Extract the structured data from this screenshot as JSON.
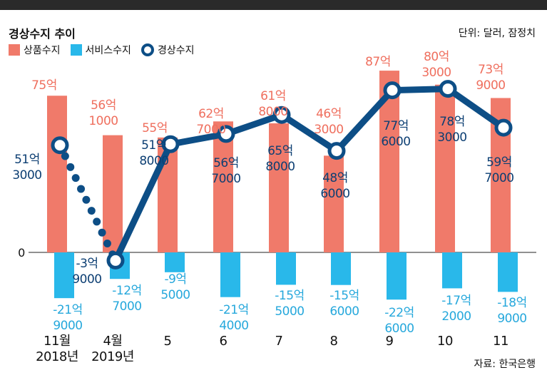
{
  "header": {
    "title": "경상수지 추이",
    "unit": "단위: 달러, 잠정치",
    "source": "자료: 한국은행"
  },
  "legend": {
    "goods": "상품수지",
    "services": "서비스수지",
    "current": "경상수지"
  },
  "colors": {
    "goods": "#f07a6a",
    "services": "#29b8ea",
    "current": "#0d4e86",
    "goods_label": "#ef6f5e",
    "services_label": "#26a8dc",
    "current_label": "#0d3f73"
  },
  "chart_data": {
    "type": "bar",
    "categories": [
      [
        "11월",
        "2018년"
      ],
      [
        "4월",
        "2019년"
      ],
      [
        "5"
      ],
      [
        "6"
      ],
      [
        "7"
      ],
      [
        "8"
      ],
      [
        "9"
      ],
      [
        "10"
      ],
      [
        "11"
      ]
    ],
    "zero_label": "0",
    "unit_scale": "억 달러",
    "series": [
      {
        "name": "상품수지",
        "values": [
          75,
          56.1,
          55,
          62.7,
          61.8,
          46.3,
          87,
          80.3,
          73.9
        ],
        "labels": [
          [
            "75억"
          ],
          [
            "56억",
            "1000"
          ],
          [
            "55억"
          ],
          [
            "62억",
            "7000"
          ],
          [
            "61억",
            "8000"
          ],
          [
            "46억",
            "3000"
          ],
          [
            "87억"
          ],
          [
            "80억",
            "3000"
          ],
          [
            "73억",
            "9000"
          ]
        ]
      },
      {
        "name": "서비스수지",
        "values": [
          -21.9,
          -12.7,
          -9.5,
          -21.4,
          -15.5,
          -15.6,
          -22.6,
          -17.2,
          -18.9
        ],
        "labels": [
          [
            "-21억",
            "9000"
          ],
          [
            "-12억",
            "7000"
          ],
          [
            "-9억",
            "5000"
          ],
          [
            "-21억",
            "4000"
          ],
          [
            "-15억",
            "5000"
          ],
          [
            "-15억",
            "6000"
          ],
          [
            "-22억",
            "6000"
          ],
          [
            "-17억",
            "2000"
          ],
          [
            "-18억",
            "9000"
          ]
        ]
      },
      {
        "name": "경상수지",
        "values": [
          51.3,
          -3.9,
          51.8,
          56.7,
          65.8,
          48.6,
          77.6,
          78.3,
          59.7
        ],
        "labels": [
          [
            "51억",
            "3000"
          ],
          [
            "-3억",
            "9000"
          ],
          [
            "51억",
            "8000"
          ],
          [
            "56억",
            "7000"
          ],
          [
            "65억",
            "8000"
          ],
          [
            "48억",
            "6000"
          ],
          [
            "77억",
            "6000"
          ],
          [
            "78억",
            "3000"
          ],
          [
            "59억",
            "7000"
          ]
        ],
        "dotted_segments": [
          [
            0,
            1
          ]
        ]
      }
    ],
    "ylim": [
      -25,
      95
    ],
    "grid": false,
    "legend_position": "top-left"
  }
}
